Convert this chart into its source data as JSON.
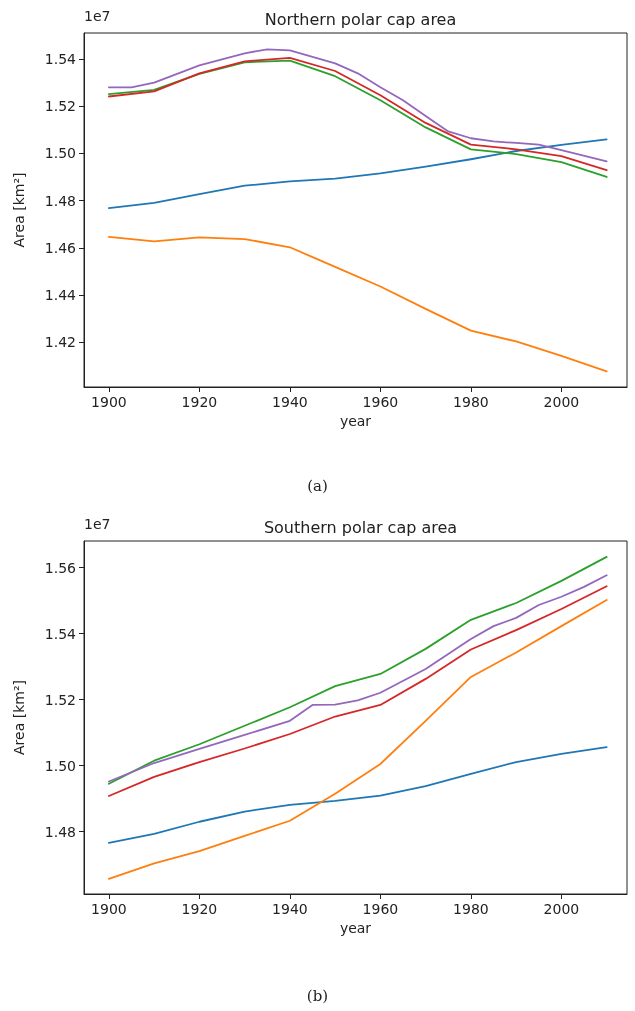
{
  "chart_data": [
    {
      "type": "line",
      "title": "Northern polar cap area",
      "xlabel": "year",
      "ylabel": "Area [km²]",
      "annotations": [
        "1e7",
        "(a)"
      ],
      "xlim": [
        1894.5,
        2014.5
      ],
      "xticks": [
        1900,
        1920,
        1940,
        1960,
        1980,
        2000
      ],
      "ylim": [
        1.401,
        1.551
      ],
      "yticks": [
        1.42,
        1.44,
        1.46,
        1.48,
        {
          "value": 1.5,
          "label": "1.50"
        },
        1.52,
        1.54
      ],
      "grid": false,
      "marker": "none",
      "line_style": "solid",
      "series": [
        {
          "color": "#1f77b4",
          "x": [
            1900,
            1910,
            1920,
            1930,
            1940,
            1950,
            1960,
            1970,
            1980,
            1990,
            2000,
            2010
          ],
          "values": [
            1.4768,
            1.479,
            1.4827,
            1.4863,
            1.4881,
            1.4893,
            1.4915,
            1.4944,
            1.4975,
            1.501,
            1.5036,
            1.5059
          ]
        },
        {
          "color": "#ff7f0e",
          "x": [
            1900,
            1910,
            1920,
            1930,
            1940,
            1950,
            1960,
            1970,
            1980,
            1990,
            2000,
            2010
          ],
          "values": [
            1.4646,
            1.4627,
            1.4644,
            1.4637,
            1.4602,
            1.4519,
            1.4436,
            1.4341,
            1.4249,
            1.4203,
            1.4142,
            1.4076
          ]
        },
        {
          "color": "#2ca02c",
          "x": [
            1900,
            1910,
            1920,
            1930,
            1940,
            1950,
            1960,
            1970,
            1980,
            1990,
            2000,
            2010
          ],
          "values": [
            1.5251,
            1.5269,
            1.5337,
            1.5386,
            1.5393,
            1.5327,
            1.5225,
            1.511,
            1.5017,
            1.4997,
            1.4963,
            1.49
          ]
        },
        {
          "color": "#d62728",
          "x": [
            1900,
            1910,
            1920,
            1930,
            1940,
            1950,
            1960,
            1970,
            1980,
            1990,
            2000,
            2010
          ],
          "values": [
            1.5241,
            1.5263,
            1.5339,
            1.539,
            1.5405,
            1.5349,
            1.5246,
            1.5129,
            1.5037,
            1.5017,
            1.4988,
            1.4929
          ]
        },
        {
          "color": "#9467bd",
          "x": [
            1900,
            1905,
            1910,
            1920,
            1930,
            1935,
            1940,
            1950,
            1955,
            1960,
            1965,
            1970,
            1975,
            1980,
            1985,
            1990,
            1995,
            2000,
            2010
          ],
          "values": [
            1.528,
            1.528,
            1.53,
            1.5373,
            1.5424,
            1.5441,
            1.5436,
            1.5381,
            1.5339,
            1.528,
            1.5225,
            1.5158,
            1.5093,
            1.5064,
            1.5051,
            1.5044,
            1.5037,
            1.5014,
            1.4966
          ]
        }
      ]
    },
    {
      "type": "line",
      "title": "Southern polar cap area",
      "xlabel": "year",
      "ylabel": "Area [km²]",
      "annotations": [
        "1e7",
        "(b)"
      ],
      "xlim": [
        1894.5,
        2014.5
      ],
      "xticks": [
        1900,
        1920,
        1940,
        1960,
        1980,
        2000
      ],
      "ylim": [
        1.4611,
        1.5681
      ],
      "yticks": [
        1.48,
        {
          "value": 1.5,
          "label": "1.50"
        },
        1.52,
        1.54,
        1.56
      ],
      "grid": false,
      "marker": "none",
      "line_style": "solid",
      "series": [
        {
          "color": "#1f77b4",
          "x": [
            1900,
            1910,
            1920,
            1930,
            1940,
            1950,
            1960,
            1970,
            1980,
            1990,
            2000,
            2010
          ],
          "values": [
            1.4766,
            1.4793,
            1.483,
            1.4861,
            1.4881,
            1.4893,
            1.4909,
            1.4938,
            1.4975,
            1.5011,
            1.5036,
            1.5056
          ]
        },
        {
          "color": "#ff7f0e",
          "x": [
            1900,
            1910,
            1920,
            1930,
            1940,
            1950,
            1960,
            1970,
            1980,
            1990,
            2000,
            2010
          ],
          "values": [
            1.4657,
            1.4704,
            1.4741,
            1.4787,
            1.4833,
            1.4915,
            1.5005,
            1.5136,
            1.5269,
            1.5343,
            1.5423,
            1.5502
          ]
        },
        {
          "color": "#2ca02c",
          "x": [
            1900,
            1910,
            1920,
            1930,
            1940,
            1950,
            1960,
            1970,
            1980,
            1990,
            2000,
            2010
          ],
          "values": [
            1.4945,
            1.5015,
            1.5065,
            1.5121,
            1.5177,
            1.5241,
            1.5278,
            1.5354,
            1.5442,
            1.5493,
            1.556,
            1.5633
          ]
        },
        {
          "color": "#d62728",
          "x": [
            1900,
            1910,
            1920,
            1930,
            1940,
            1950,
            1960,
            1970,
            1980,
            1990,
            2000,
            2010
          ],
          "values": [
            1.4908,
            1.4966,
            1.5011,
            1.5052,
            1.5096,
            1.5149,
            1.5184,
            1.5263,
            1.5352,
            1.5411,
            1.5475,
            1.5544
          ]
        },
        {
          "color": "#9467bd",
          "x": [
            1900,
            1910,
            1920,
            1930,
            1940,
            1945,
            1950,
            1955,
            1960,
            1970,
            1980,
            1985,
            1990,
            1995,
            2000,
            2005,
            2010
          ],
          "values": [
            1.4952,
            1.5008,
            1.5051,
            1.5093,
            1.5136,
            1.5184,
            1.5185,
            1.5198,
            1.5221,
            1.5293,
            1.5384,
            1.5423,
            1.5448,
            1.5487,
            1.5512,
            1.5542,
            1.5577
          ]
        }
      ]
    }
  ]
}
